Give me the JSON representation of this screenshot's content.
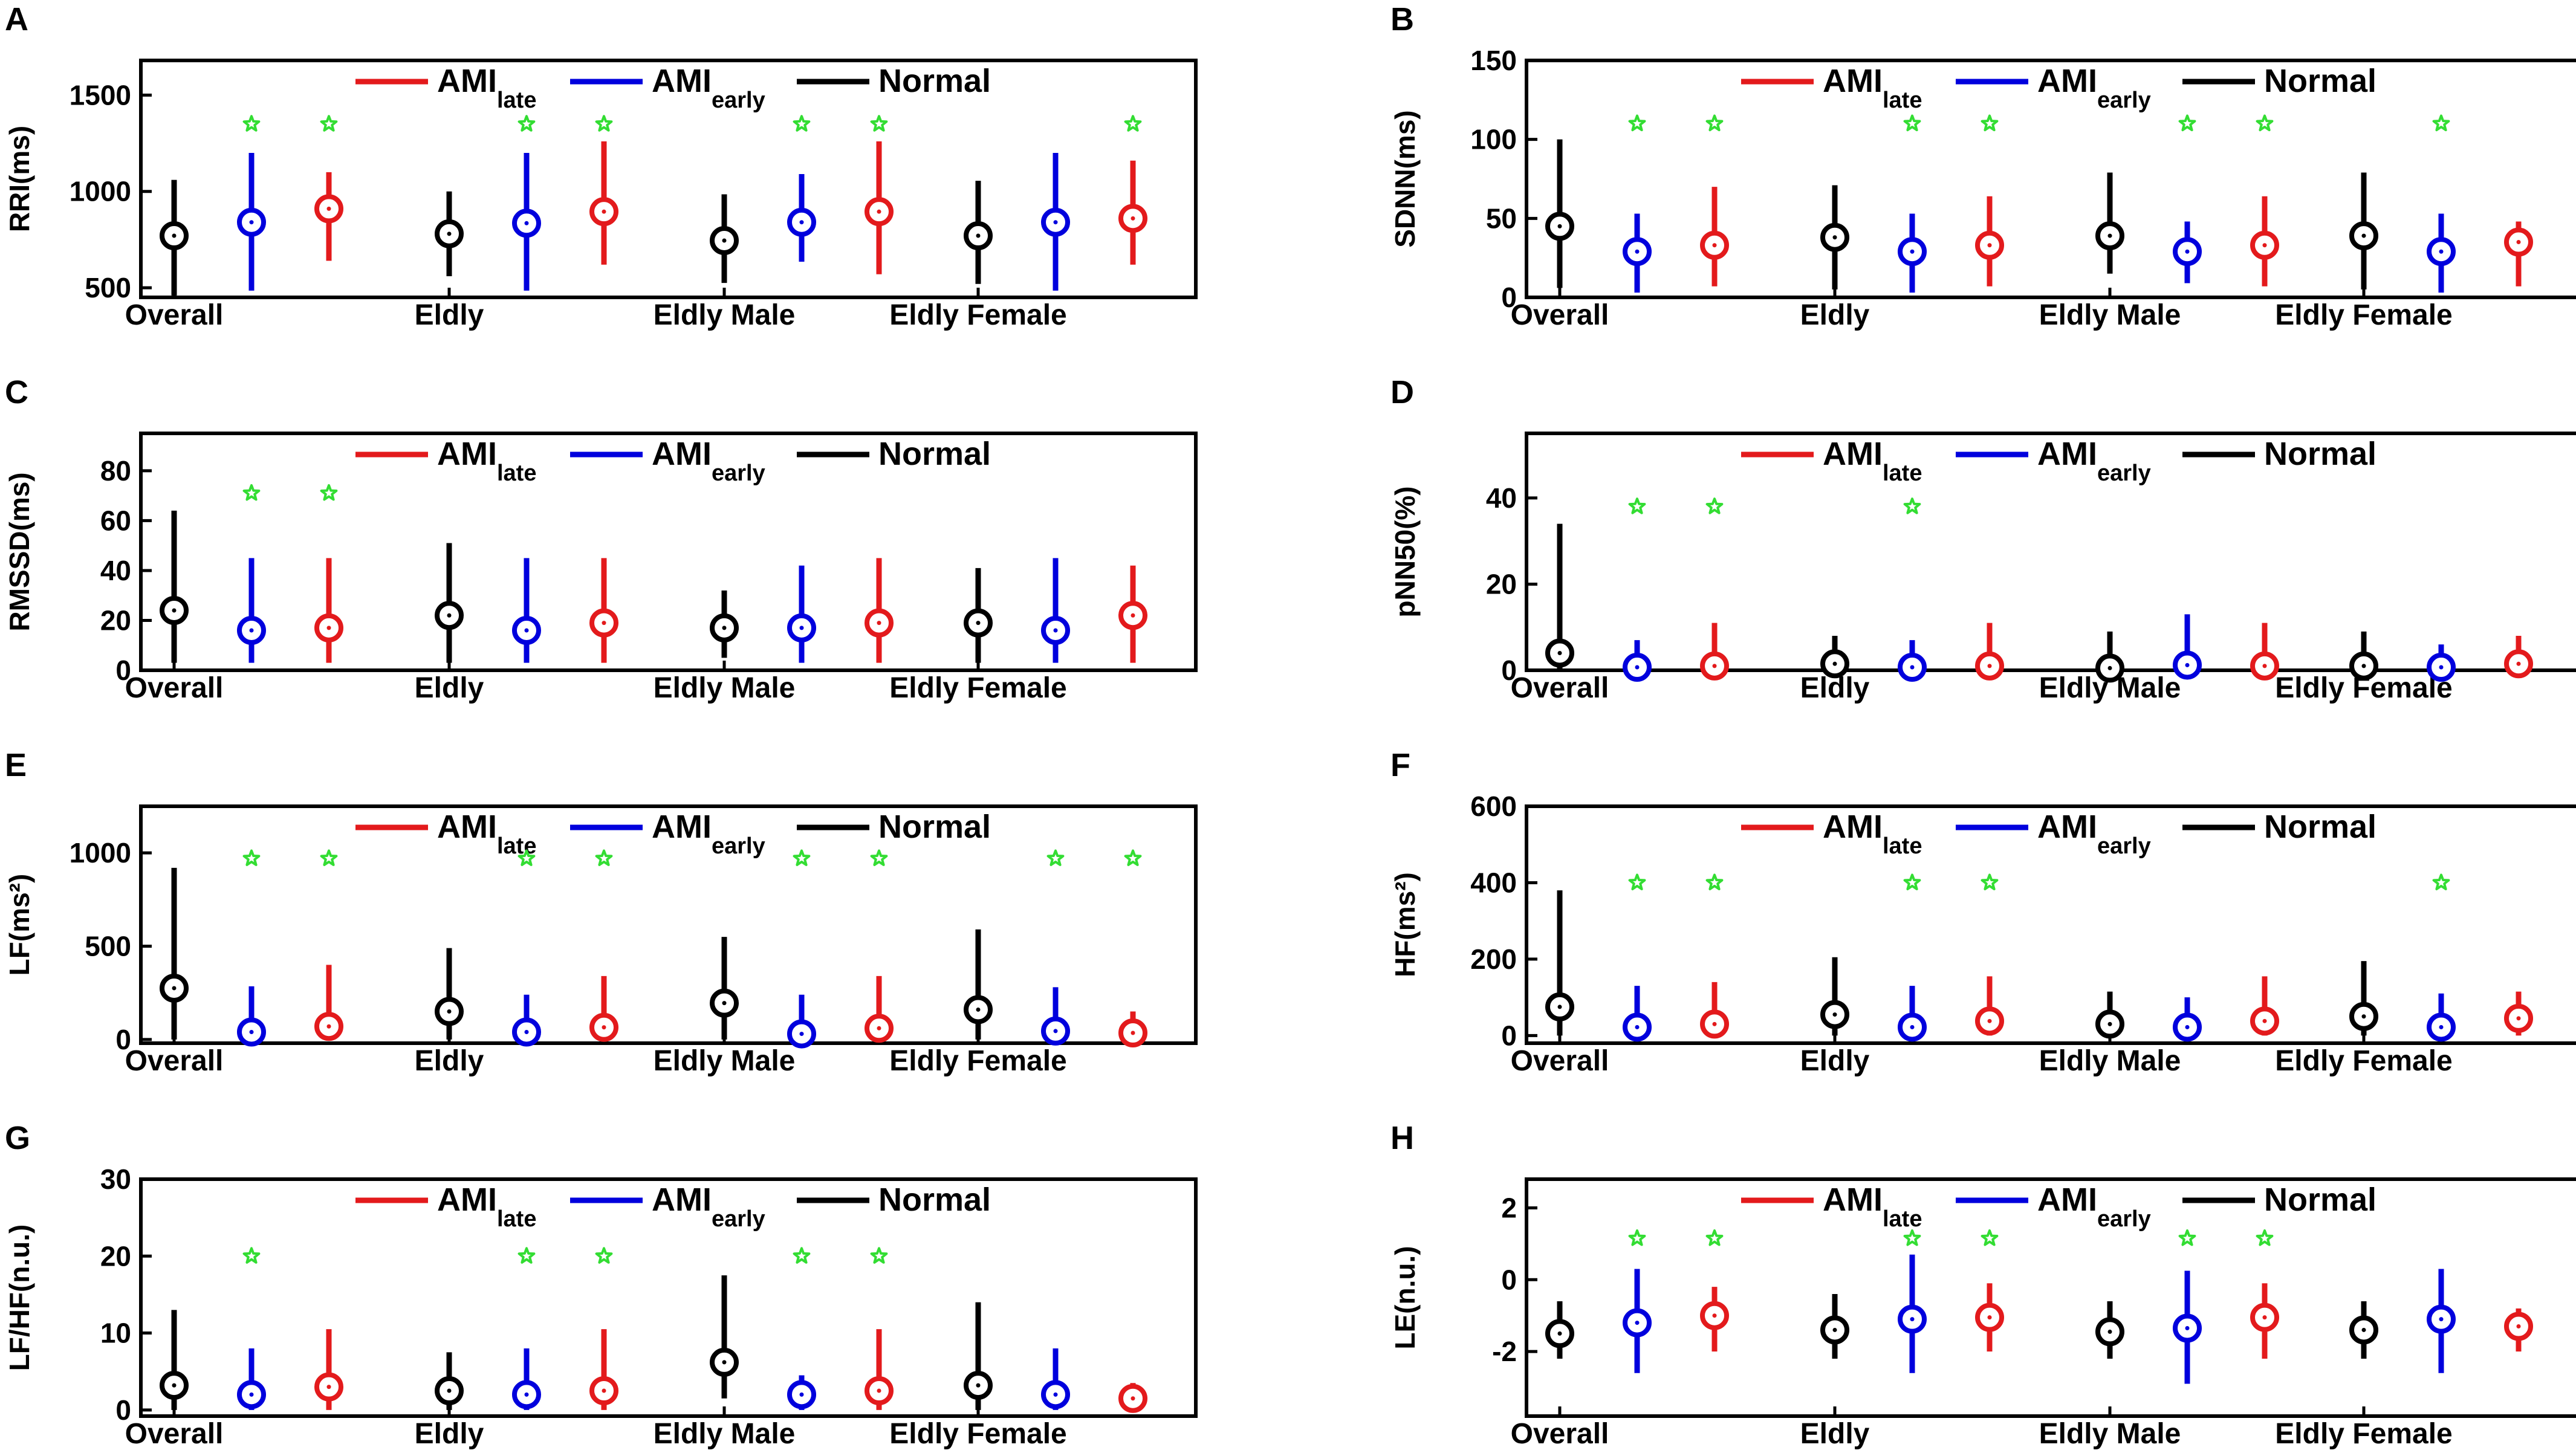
{
  "figure": {
    "series_legend": [
      {
        "key": "late",
        "base": "AMI",
        "sub": "late",
        "color": "#e31a1c"
      },
      {
        "key": "early",
        "base": "AMI",
        "sub": "early",
        "color": "#0000dd"
      },
      {
        "key": "normal",
        "base": "Normal",
        "sub": "",
        "color": "#000000"
      }
    ],
    "star_color": "#33dd33"
  },
  "chart_data": [
    {
      "letter": "A",
      "type": "scatter",
      "ylabel": "RRI(ms)",
      "ylim": [
        450,
        1680
      ],
      "yticks": [
        500,
        1000,
        1500
      ],
      "categories": [
        "Overall",
        "Eldly",
        "Eldly Male",
        "Eldly Female"
      ],
      "series": [
        {
          "name": "Normal",
          "mean": [
            770,
            780,
            745,
            770
          ],
          "low": [
            460,
            560,
            525,
            520
          ],
          "high": [
            1060,
            1000,
            985,
            1055
          ]
        },
        {
          "name": "AMI_early",
          "mean": [
            840,
            835,
            840,
            840
          ],
          "low": [
            485,
            485,
            635,
            485
          ],
          "high": [
            1200,
            1200,
            1090,
            1200
          ]
        },
        {
          "name": "AMI_late",
          "mean": [
            910,
            895,
            895,
            860
          ],
          "low": [
            640,
            620,
            570,
            620
          ],
          "high": [
            1100,
            1260,
            1260,
            1160
          ]
        }
      ],
      "significance": [
        {
          "cat": 0,
          "s": "early"
        },
        {
          "cat": 0,
          "s": "late"
        },
        {
          "cat": 1,
          "s": "early"
        },
        {
          "cat": 1,
          "s": "late"
        },
        {
          "cat": 2,
          "s": "early"
        },
        {
          "cat": 2,
          "s": "late"
        },
        {
          "cat": 3,
          "s": "late"
        }
      ],
      "star_value": 1350
    },
    {
      "letter": "B",
      "type": "scatter",
      "ylabel": "SDNN(ms)",
      "ylim": [
        0,
        150
      ],
      "yticks": [
        0,
        50,
        100,
        150
      ],
      "categories": [
        "Overall",
        "Eldly",
        "Eldly Male",
        "Eldly Female"
      ],
      "series": [
        {
          "name": "Normal",
          "mean": [
            45,
            38,
            39,
            39
          ],
          "low": [
            6,
            5,
            15,
            5
          ],
          "high": [
            100,
            71,
            79,
            79
          ]
        },
        {
          "name": "AMI_early",
          "mean": [
            29,
            29,
            29,
            29
          ],
          "low": [
            3,
            3,
            9,
            3
          ],
          "high": [
            53,
            53,
            48,
            53
          ]
        },
        {
          "name": "AMI_late",
          "mean": [
            33,
            33,
            33,
            35
          ],
          "low": [
            7,
            7,
            7,
            7
          ],
          "high": [
            70,
            64,
            64,
            48
          ]
        }
      ],
      "significance": [
        {
          "cat": 0,
          "s": "early"
        },
        {
          "cat": 0,
          "s": "late"
        },
        {
          "cat": 1,
          "s": "early"
        },
        {
          "cat": 1,
          "s": "late"
        },
        {
          "cat": 2,
          "s": "early"
        },
        {
          "cat": 2,
          "s": "late"
        },
        {
          "cat": 3,
          "s": "early"
        }
      ],
      "star_value": 110
    },
    {
      "letter": "C",
      "type": "scatter",
      "ylabel": "RMSSD(ms)",
      "ylim": [
        0,
        95
      ],
      "yticks": [
        0,
        20,
        40,
        60,
        80
      ],
      "categories": [
        "Overall",
        "Eldly",
        "Eldly Male",
        "Eldly Female"
      ],
      "series": [
        {
          "name": "Normal",
          "mean": [
            24,
            22,
            17,
            19
          ],
          "low": [
            3,
            3,
            5,
            3
          ],
          "high": [
            64,
            51,
            32,
            41
          ]
        },
        {
          "name": "AMI_early",
          "mean": [
            16,
            16,
            17,
            16
          ],
          "low": [
            3,
            3,
            3,
            3
          ],
          "high": [
            45,
            45,
            42,
            45
          ]
        },
        {
          "name": "AMI_late",
          "mean": [
            17,
            19,
            19,
            22
          ],
          "low": [
            3,
            3,
            3,
            3
          ],
          "high": [
            45,
            45,
            45,
            42
          ]
        }
      ],
      "significance": [
        {
          "cat": 0,
          "s": "early"
        },
        {
          "cat": 0,
          "s": "late"
        }
      ],
      "star_value": 71
    },
    {
      "letter": "D",
      "type": "scatter",
      "ylabel": "pNN50(%)",
      "ylim": [
        0,
        55
      ],
      "yticks": [
        0,
        20,
        40
      ],
      "categories": [
        "Overall",
        "Eldly",
        "Eldly Male",
        "Eldly Female"
      ],
      "series": [
        {
          "name": "Normal",
          "mean": [
            4,
            1.5,
            0.5,
            1
          ],
          "low": [
            0,
            0,
            0,
            0
          ],
          "high": [
            34,
            8,
            9,
            9
          ]
        },
        {
          "name": "AMI_early",
          "mean": [
            0.7,
            0.7,
            1.2,
            0.7
          ],
          "low": [
            0,
            0,
            0,
            0
          ],
          "high": [
            7,
            7,
            13,
            6
          ]
        },
        {
          "name": "AMI_late",
          "mean": [
            1,
            1,
            1,
            1.5
          ],
          "low": [
            0,
            0,
            0,
            0
          ],
          "high": [
            11,
            11,
            11,
            8
          ]
        }
      ],
      "significance": [
        {
          "cat": 0,
          "s": "early"
        },
        {
          "cat": 0,
          "s": "late"
        },
        {
          "cat": 1,
          "s": "early"
        }
      ],
      "star_value": 38
    },
    {
      "letter": "E",
      "type": "scatter",
      "ylabel": "LF(ms²)",
      "ylim": [
        -20,
        1250
      ],
      "yticks": [
        0,
        500,
        1000
      ],
      "categories": [
        "Overall",
        "Eldly",
        "Eldly Male",
        "Eldly Female"
      ],
      "series": [
        {
          "name": "Normal",
          "mean": [
            275,
            150,
            195,
            160
          ],
          "low": [
            0,
            0,
            0,
            0
          ],
          "high": [
            920,
            490,
            550,
            590
          ]
        },
        {
          "name": "AMI_early",
          "mean": [
            40,
            40,
            30,
            45
          ],
          "low": [
            0,
            0,
            0,
            0
          ],
          "high": [
            285,
            240,
            240,
            280
          ]
        },
        {
          "name": "AMI_late",
          "mean": [
            70,
            65,
            60,
            35
          ],
          "low": [
            0,
            0,
            0,
            0
          ],
          "high": [
            400,
            340,
            340,
            150
          ]
        }
      ],
      "significance": [
        {
          "cat": 0,
          "s": "early"
        },
        {
          "cat": 0,
          "s": "late"
        },
        {
          "cat": 1,
          "s": "early"
        },
        {
          "cat": 1,
          "s": "late"
        },
        {
          "cat": 2,
          "s": "early"
        },
        {
          "cat": 2,
          "s": "late"
        },
        {
          "cat": 3,
          "s": "early"
        },
        {
          "cat": 3,
          "s": "late"
        }
      ],
      "star_value": 970
    },
    {
      "letter": "F",
      "type": "scatter",
      "ylabel": "HF(ms²)",
      "ylim": [
        -20,
        600
      ],
      "yticks": [
        0,
        200,
        400,
        600
      ],
      "categories": [
        "Overall",
        "Eldly",
        "Eldly Male",
        "Eldly Female"
      ],
      "series": [
        {
          "name": "Normal",
          "mean": [
            75,
            55,
            30,
            50
          ],
          "low": [
            0,
            0,
            0,
            0
          ],
          "high": [
            380,
            205,
            115,
            195
          ]
        },
        {
          "name": "AMI_early",
          "mean": [
            22,
            22,
            22,
            22
          ],
          "low": [
            0,
            0,
            0,
            0
          ],
          "high": [
            130,
            130,
            100,
            110
          ]
        },
        {
          "name": "AMI_late",
          "mean": [
            30,
            38,
            38,
            45
          ],
          "low": [
            0,
            0,
            0,
            0
          ],
          "high": [
            140,
            155,
            155,
            115
          ]
        }
      ],
      "significance": [
        {
          "cat": 0,
          "s": "early"
        },
        {
          "cat": 0,
          "s": "late"
        },
        {
          "cat": 1,
          "s": "early"
        },
        {
          "cat": 1,
          "s": "late"
        },
        {
          "cat": 3,
          "s": "early"
        }
      ],
      "star_value": 400
    },
    {
      "letter": "G",
      "type": "scatter",
      "ylabel": "LF/HF(n.u.)",
      "ylim": [
        -0.8,
        30
      ],
      "yticks": [
        0,
        10,
        20,
        30
      ],
      "categories": [
        "Overall",
        "Eldly",
        "Eldly Male",
        "Eldly Female"
      ],
      "series": [
        {
          "name": "Normal",
          "mean": [
            3.2,
            2.5,
            6.2,
            3.2
          ],
          "low": [
            0,
            0,
            1.5,
            0
          ],
          "high": [
            13,
            7.5,
            17.5,
            14
          ]
        },
        {
          "name": "AMI_early",
          "mean": [
            2,
            2,
            2,
            2
          ],
          "low": [
            0,
            0,
            0,
            0
          ],
          "high": [
            8,
            8,
            4.5,
            8
          ]
        },
        {
          "name": "AMI_late",
          "mean": [
            3,
            2.5,
            2.5,
            1.5
          ],
          "low": [
            0,
            0,
            0,
            0
          ],
          "high": [
            10.5,
            10.5,
            10.5,
            3.5
          ]
        }
      ],
      "significance": [
        {
          "cat": 0,
          "s": "early"
        },
        {
          "cat": 1,
          "s": "early"
        },
        {
          "cat": 1,
          "s": "late"
        },
        {
          "cat": 2,
          "s": "early"
        },
        {
          "cat": 2,
          "s": "late"
        }
      ],
      "star_value": 20
    },
    {
      "letter": "H",
      "type": "scatter",
      "ylabel": "LE(n.u.)",
      "ylim": [
        -3.8,
        2.8
      ],
      "yticks": [
        -2,
        0,
        2
      ],
      "categories": [
        "Overall",
        "Eldly",
        "Eldly Male",
        "Eldly Female"
      ],
      "series": [
        {
          "name": "Normal",
          "mean": [
            -1.5,
            -1.4,
            -1.45,
            -1.4
          ],
          "low": [
            -2.2,
            -2.2,
            -2.2,
            -2.2
          ],
          "high": [
            -0.6,
            -0.4,
            -0.6,
            -0.6
          ]
        },
        {
          "name": "AMI_early",
          "mean": [
            -1.2,
            -1.1,
            -1.35,
            -1.1
          ],
          "low": [
            -2.6,
            -2.6,
            -2.9,
            -2.6
          ],
          "high": [
            0.3,
            0.7,
            0.25,
            0.3
          ]
        },
        {
          "name": "AMI_late",
          "mean": [
            -1,
            -1.05,
            -1.05,
            -1.3
          ],
          "low": [
            -2,
            -2,
            -2.2,
            -2
          ],
          "high": [
            -0.2,
            -0.1,
            -0.1,
            -0.8
          ]
        }
      ],
      "significance": [
        {
          "cat": 0,
          "s": "early"
        },
        {
          "cat": 0,
          "s": "late"
        },
        {
          "cat": 1,
          "s": "early"
        },
        {
          "cat": 1,
          "s": "late"
        },
        {
          "cat": 2,
          "s": "early"
        },
        {
          "cat": 2,
          "s": "late"
        }
      ],
      "star_value": 1.15
    }
  ]
}
